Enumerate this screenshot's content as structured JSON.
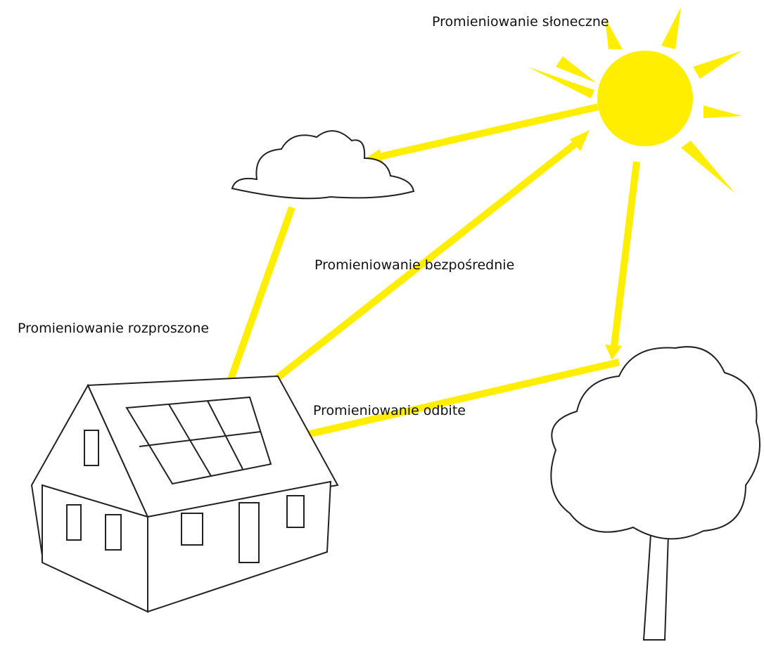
{
  "labels": {
    "solar": "Promieniowanie słoneczne",
    "direct": "Promieniowanie bezpośrednie",
    "diffuse": "Promieniowanie rozproszone",
    "reflected": "Promieniowanie odbite"
  }
}
